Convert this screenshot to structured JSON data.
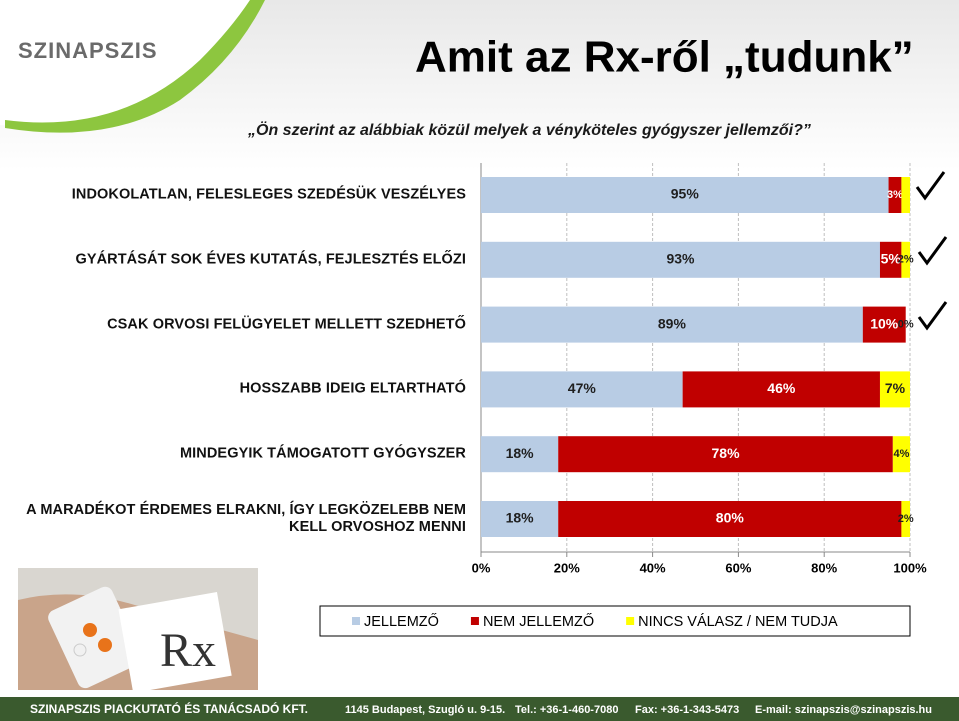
{
  "chart_data": {
    "type": "stacked-bar-horizontal",
    "title": "Amit az Rx-ről „tudunk”",
    "subtitle": "„Ön szerint az alábbiak közül melyek a vényköteles gyógyszer jellemzői?”",
    "categories": [
      "INDOKOLATLAN, FELESLEGES SZEDÉSÜK VESZÉLYES",
      "GYÁRTÁSÁT SOK ÉVES KUTATÁS, FEJLESZTÉS ELŐZI",
      "CSAK ORVOSI FELÜGYELET MELLETT SZEDHETŐ",
      "HOSSZABB IDEIG ELTARTHATÓ",
      "MINDEGYIK TÁMOGATOTT GYÓGYSZER",
      "A MARADÉKOT ÉRDEMES ELRAKNI, ÍGY LEGKÖZELEBB NEM KELL ORVOSHOZ MENNI"
    ],
    "series": [
      {
        "name": "JELLEMZŐ",
        "color": "#b8cce4",
        "label_color": "#1f1f1f",
        "values": [
          95,
          93,
          89,
          47,
          18,
          18
        ],
        "value_labels": [
          "95%",
          "93%",
          "89%",
          "47%",
          "18%",
          "18%"
        ]
      },
      {
        "name": "NEM JELLEMZŐ",
        "color": "#c00000",
        "label_color": "#ffffff",
        "values": [
          3,
          5,
          10,
          46,
          78,
          80
        ],
        "value_labels": [
          "3%",
          "5%",
          "10%",
          "46%",
          "78%",
          "80%"
        ]
      },
      {
        "name": "NINCS VÁLASZ / NEM TUDJA",
        "color": "#ffff00",
        "label_color": "#1f1f1f",
        "values": [
          2,
          2,
          0,
          7,
          4,
          2
        ],
        "value_labels": [
          null,
          "2%",
          "0%",
          "7%",
          "4%",
          "2%"
        ]
      }
    ],
    "xlim": [
      0,
      100
    ],
    "xticks": [
      {
        "value": 0,
        "label": "0%"
      },
      {
        "value": 20,
        "label": "20%"
      },
      {
        "value": 40,
        "label": "40%"
      },
      {
        "value": 60,
        "label": "60%"
      },
      {
        "value": 80,
        "label": "80%"
      },
      {
        "value": 100,
        "label": "100%"
      }
    ],
    "grid": true
  },
  "header": {
    "logo": "SZINAPSZIS"
  },
  "footer": {
    "company": "SZINAPSZIS PIACKUTATÓ ÉS TANÁCSADÓ KFT.",
    "address": "1145 Budapest, Szugló u. 9-15.",
    "phone": "Tel.: +36-1-460-7080",
    "fax": "Fax: +36-1-343-5473",
    "email": "E-mail: szinapszis@szinapszis.hu"
  },
  "image": {
    "label": "Rx"
  }
}
